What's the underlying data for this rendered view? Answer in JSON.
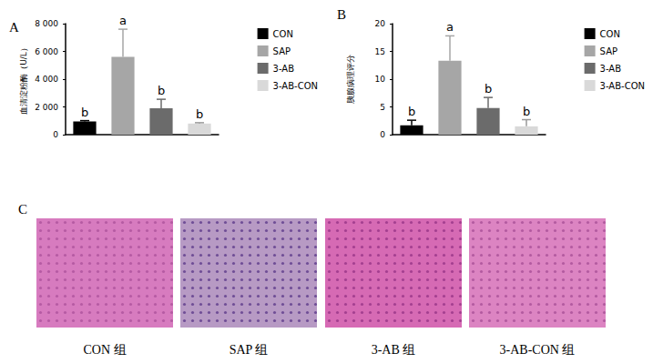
{
  "panel_labels": [
    "A",
    "B",
    "C"
  ],
  "chart_data": [
    {
      "type": "bar",
      "ylabel": "血清淀粉酶（U/L）",
      "categories": [
        "CON",
        "SAP",
        "3-AB",
        "3-AB-CON"
      ],
      "values": [
        950,
        5600,
        1900,
        800
      ],
      "errors": [
        60,
        2000,
        650,
        60
      ],
      "annotations": [
        "b",
        "a",
        "b",
        "b"
      ],
      "colors": [
        "#000000",
        "#a6a6a6",
        "#6b6b6b",
        "#d9d9d9"
      ],
      "ylim": [
        0,
        8000
      ],
      "yticks": [
        0,
        {
          "value": 2000,
          "label": "2 000"
        },
        {
          "value": 4000,
          "label": "4 000"
        },
        {
          "value": 6000,
          "label": "6 000"
        },
        {
          "value": 8000,
          "label": "8 000"
        }
      ],
      "legend": "right",
      "tick_labels": "y",
      "grid": false
    },
    {
      "type": "bar",
      "ylabel": "胰腺病理评分",
      "categories": [
        "CON",
        "SAP",
        "3-AB",
        "3-AB-CON"
      ],
      "values": [
        1.7,
        13.3,
        4.8,
        1.5
      ],
      "errors": [
        0.9,
        4.5,
        1.9,
        1.2
      ],
      "annotations": [
        "b",
        "a",
        "b",
        "b"
      ],
      "colors": [
        "#000000",
        "#a6a6a6",
        "#6b6b6b",
        "#d9d9d9"
      ],
      "ylim": [
        0,
        20
      ],
      "yticks": [
        0,
        5,
        10,
        15,
        20
      ],
      "legend": "right",
      "tick_labels": "y",
      "grid": false
    }
  ],
  "images": {
    "captions": [
      "CON 组",
      "SAP 组",
      "3-AB 组",
      "3-AB-CON 组"
    ]
  }
}
